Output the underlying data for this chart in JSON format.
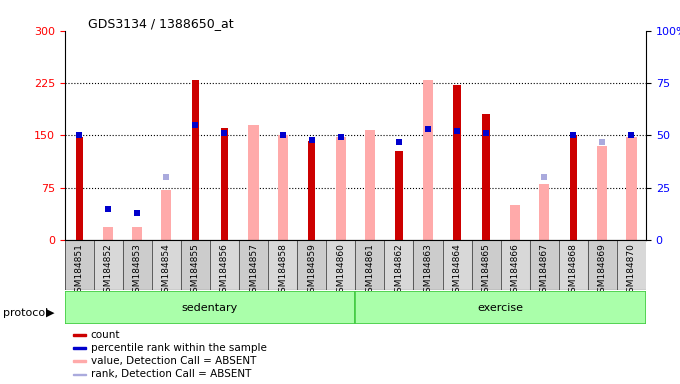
{
  "title": "GDS3134 / 1388650_at",
  "samples": [
    "GSM184851",
    "GSM184852",
    "GSM184853",
    "GSM184854",
    "GSM184855",
    "GSM184856",
    "GSM184857",
    "GSM184858",
    "GSM184859",
    "GSM184860",
    "GSM184861",
    "GSM184862",
    "GSM184863",
    "GSM184864",
    "GSM184865",
    "GSM184866",
    "GSM184867",
    "GSM184868",
    "GSM184869",
    "GSM184870"
  ],
  "protocol_groups": [
    {
      "label": "sedentary",
      "start": 0,
      "end": 10
    },
    {
      "label": "exercise",
      "start": 10,
      "end": 20
    }
  ],
  "count_values": [
    148,
    0,
    0,
    0,
    230,
    160,
    0,
    0,
    142,
    0,
    0,
    128,
    0,
    222,
    180,
    0,
    0,
    150,
    0,
    0
  ],
  "percentile_rank_pct": [
    50,
    15,
    13,
    0,
    55,
    51,
    0,
    50,
    48,
    49,
    0,
    47,
    53,
    52,
    51,
    0,
    0,
    50,
    0,
    50
  ],
  "absent_value_values": [
    0,
    18,
    18,
    72,
    0,
    0,
    165,
    150,
    0,
    147,
    157,
    0,
    230,
    0,
    0,
    50,
    80,
    0,
    135,
    148
  ],
  "absent_rank_pct": [
    0,
    15,
    13,
    30,
    0,
    0,
    0,
    50,
    0,
    0,
    0,
    0,
    53,
    0,
    0,
    0,
    30,
    0,
    47,
    0
  ],
  "ylim_left": [
    0,
    300
  ],
  "ylim_right": [
    0,
    100
  ],
  "yticks_left": [
    0,
    75,
    150,
    225,
    300
  ],
  "yticks_right": [
    0,
    25,
    50,
    75,
    100
  ],
  "color_count": "#cc0000",
  "color_percentile": "#0000cc",
  "color_absent_value": "#ffaaaa",
  "color_absent_rank": "#aaaadd",
  "bg_color": "#d8d8d8",
  "plot_bg_color": "#ffffff",
  "green_band_light": "#aaffaa",
  "green_band_dark": "#44cc44"
}
